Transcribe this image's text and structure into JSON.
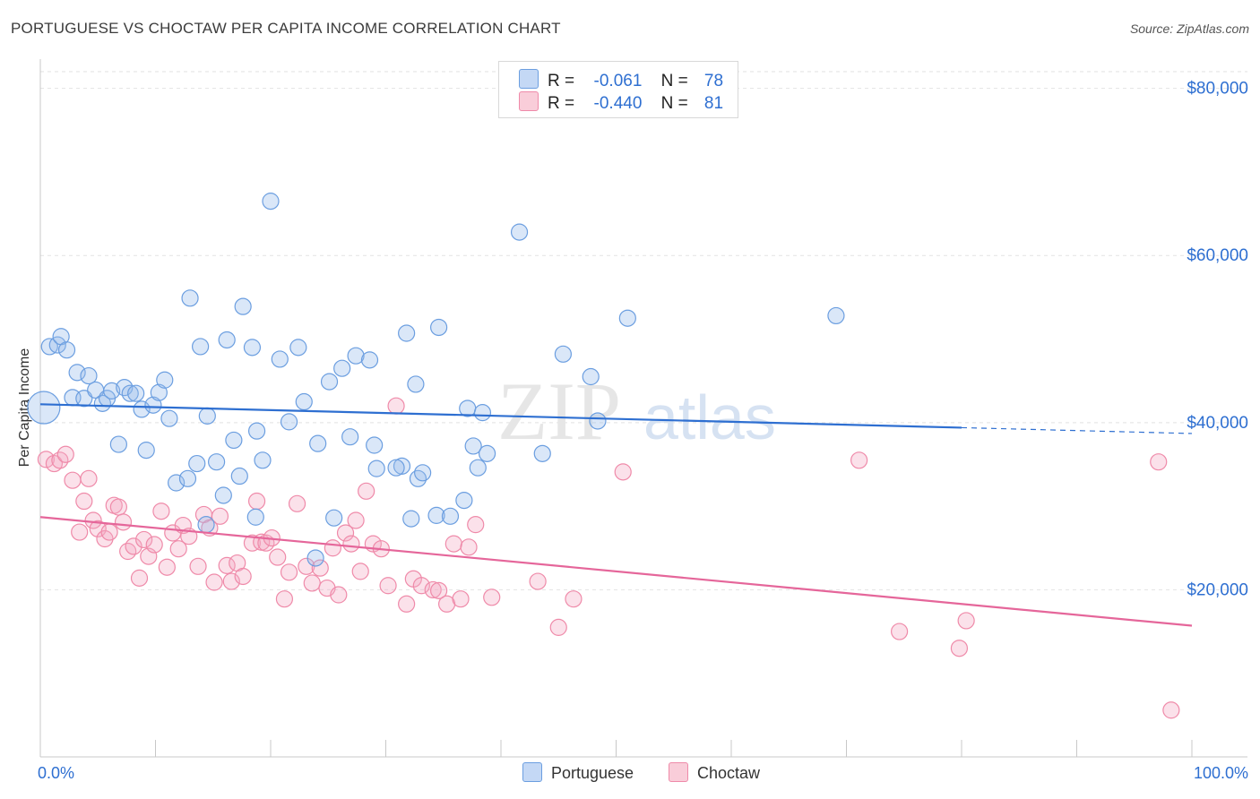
{
  "header": {
    "title": "PORTUGUESE VS CHOCTAW PER CAPITA INCOME CORRELATION CHART",
    "source": "Source: ZipAtlas.com"
  },
  "legend": {
    "portuguese": {
      "r_label": "R =",
      "r_value": "-0.061",
      "n_label": "N =",
      "n_value": "78"
    },
    "choctaw": {
      "r_label": "R =",
      "r_value": "-0.440",
      "n_label": "N =",
      "n_value": "81"
    }
  },
  "watermark": {
    "zip": "ZIP",
    "atlas": "atlas"
  },
  "chart_data": {
    "type": "scatter",
    "ylabel": "Per Capita Income",
    "xlim": [
      0,
      100
    ],
    "ylim": [
      0,
      82000
    ],
    "x_tick_labels": [
      "0.0%",
      "100.0%"
    ],
    "y_ticks": [
      20000,
      40000,
      60000,
      80000
    ],
    "y_tick_labels": [
      "$20,000",
      "$40,000",
      "$60,000",
      "$80,000"
    ],
    "grid": true,
    "colors": {
      "portuguese": "#6b9ee0",
      "choctaw": "#ef8aa9",
      "blue_line": "#2e6fd1",
      "pink_line": "#e5669a",
      "tick_text": "#2e6fd1"
    },
    "series": [
      {
        "name": "Portuguese",
        "trend": {
          "x": [
            0,
            80
          ],
          "y": [
            42200,
            39400
          ],
          "dashed_to": [
            100,
            38700
          ]
        },
        "points": [
          [
            0.3,
            41800
          ],
          [
            0.8,
            49100
          ],
          [
            1.5,
            49300
          ],
          [
            1.8,
            50300
          ],
          [
            2.3,
            48700
          ],
          [
            2.8,
            43000
          ],
          [
            3.2,
            46000
          ],
          [
            3.8,
            42900
          ],
          [
            4.2,
            45600
          ],
          [
            4.8,
            43900
          ],
          [
            5.4,
            42300
          ],
          [
            5.8,
            42900
          ],
          [
            6.2,
            43800
          ],
          [
            6.8,
            37400
          ],
          [
            7.3,
            44200
          ],
          [
            7.8,
            43500
          ],
          [
            8.3,
            43500
          ],
          [
            8.8,
            41600
          ],
          [
            9.2,
            36700
          ],
          [
            9.8,
            42100
          ],
          [
            10.3,
            43600
          ],
          [
            10.8,
            45100
          ],
          [
            11.2,
            40500
          ],
          [
            11.8,
            32800
          ],
          [
            12.8,
            33300
          ],
          [
            13.0,
            54900
          ],
          [
            13.6,
            35100
          ],
          [
            13.9,
            49100
          ],
          [
            14.4,
            27800
          ],
          [
            14.5,
            40800
          ],
          [
            15.3,
            35300
          ],
          [
            15.9,
            31300
          ],
          [
            16.2,
            49900
          ],
          [
            16.8,
            37900
          ],
          [
            17.3,
            33600
          ],
          [
            17.6,
            53900
          ],
          [
            18.4,
            49000
          ],
          [
            18.8,
            39000
          ],
          [
            19.3,
            35500
          ],
          [
            20.0,
            66500
          ],
          [
            20.8,
            47600
          ],
          [
            21.6,
            40100
          ],
          [
            22.4,
            49000
          ],
          [
            22.9,
            42500
          ],
          [
            24.1,
            37500
          ],
          [
            25.1,
            44900
          ],
          [
            25.5,
            28600
          ],
          [
            26.2,
            46500
          ],
          [
            26.9,
            38300
          ],
          [
            27.4,
            48000
          ],
          [
            28.6,
            47500
          ],
          [
            29.0,
            37300
          ],
          [
            29.2,
            34500
          ],
          [
            31.4,
            34800
          ],
          [
            31.8,
            50700
          ],
          [
            32.2,
            28500
          ],
          [
            32.6,
            44600
          ],
          [
            32.8,
            33300
          ],
          [
            33.2,
            34000
          ],
          [
            34.4,
            28900
          ],
          [
            34.6,
            51400
          ],
          [
            35.6,
            28800
          ],
          [
            36.8,
            30700
          ],
          [
            37.1,
            41700
          ],
          [
            37.6,
            37200
          ],
          [
            38.0,
            34600
          ],
          [
            38.4,
            41200
          ],
          [
            38.8,
            36300
          ],
          [
            41.6,
            62800
          ],
          [
            43.6,
            36300
          ],
          [
            45.4,
            48200
          ],
          [
            47.8,
            45500
          ],
          [
            48.4,
            40200
          ],
          [
            51.0,
            52500
          ],
          [
            69.1,
            52800
          ],
          [
            23.9,
            23800
          ],
          [
            30.9,
            34600
          ],
          [
            18.7,
            28700
          ]
        ]
      },
      {
        "name": "Choctaw",
        "trend": {
          "x": [
            0,
            100
          ],
          "y": [
            28700,
            15700
          ]
        },
        "points": [
          [
            0.5,
            35600
          ],
          [
            1.2,
            35100
          ],
          [
            1.7,
            35500
          ],
          [
            2.2,
            36200
          ],
          [
            2.8,
            33100
          ],
          [
            3.4,
            26900
          ],
          [
            3.8,
            30600
          ],
          [
            4.2,
            33300
          ],
          [
            4.6,
            28300
          ],
          [
            5.0,
            27300
          ],
          [
            5.6,
            26100
          ],
          [
            6.0,
            26900
          ],
          [
            6.4,
            30100
          ],
          [
            6.8,
            29900
          ],
          [
            7.2,
            28100
          ],
          [
            7.6,
            24600
          ],
          [
            8.1,
            25200
          ],
          [
            8.6,
            21400
          ],
          [
            9.0,
            26000
          ],
          [
            9.4,
            24000
          ],
          [
            9.9,
            25400
          ],
          [
            10.5,
            29400
          ],
          [
            11.0,
            22700
          ],
          [
            11.5,
            26800
          ],
          [
            12.0,
            24900
          ],
          [
            12.4,
            27700
          ],
          [
            12.9,
            26400
          ],
          [
            13.7,
            22800
          ],
          [
            14.2,
            29000
          ],
          [
            14.7,
            27400
          ],
          [
            15.1,
            20900
          ],
          [
            15.6,
            28800
          ],
          [
            16.2,
            22900
          ],
          [
            16.6,
            21000
          ],
          [
            17.1,
            23200
          ],
          [
            17.6,
            21600
          ],
          [
            18.4,
            25600
          ],
          [
            18.8,
            30600
          ],
          [
            19.2,
            25700
          ],
          [
            19.6,
            25600
          ],
          [
            20.1,
            26200
          ],
          [
            20.6,
            23900
          ],
          [
            21.2,
            18900
          ],
          [
            21.6,
            22100
          ],
          [
            22.3,
            30300
          ],
          [
            23.1,
            22800
          ],
          [
            23.6,
            20800
          ],
          [
            24.3,
            22600
          ],
          [
            24.9,
            20200
          ],
          [
            25.4,
            25000
          ],
          [
            25.9,
            19400
          ],
          [
            26.5,
            26800
          ],
          [
            27.0,
            25500
          ],
          [
            27.4,
            28300
          ],
          [
            27.8,
            22200
          ],
          [
            28.3,
            31800
          ],
          [
            28.9,
            25500
          ],
          [
            29.6,
            24900
          ],
          [
            30.2,
            20500
          ],
          [
            30.9,
            42000
          ],
          [
            31.8,
            18300
          ],
          [
            32.4,
            21300
          ],
          [
            33.1,
            20500
          ],
          [
            34.1,
            20000
          ],
          [
            34.6,
            19900
          ],
          [
            35.3,
            18300
          ],
          [
            35.9,
            25500
          ],
          [
            36.5,
            18900
          ],
          [
            37.2,
            25100
          ],
          [
            37.8,
            27800
          ],
          [
            39.2,
            19100
          ],
          [
            43.2,
            21000
          ],
          [
            45.0,
            15500
          ],
          [
            46.3,
            18900
          ],
          [
            50.6,
            34100
          ],
          [
            71.1,
            35500
          ],
          [
            74.6,
            15000
          ],
          [
            79.8,
            13000
          ],
          [
            80.4,
            16300
          ],
          [
            97.1,
            35300
          ],
          [
            98.2,
            5600
          ]
        ]
      }
    ]
  },
  "bottom_legend": {
    "portuguese": "Portuguese",
    "choctaw": "Choctaw"
  }
}
